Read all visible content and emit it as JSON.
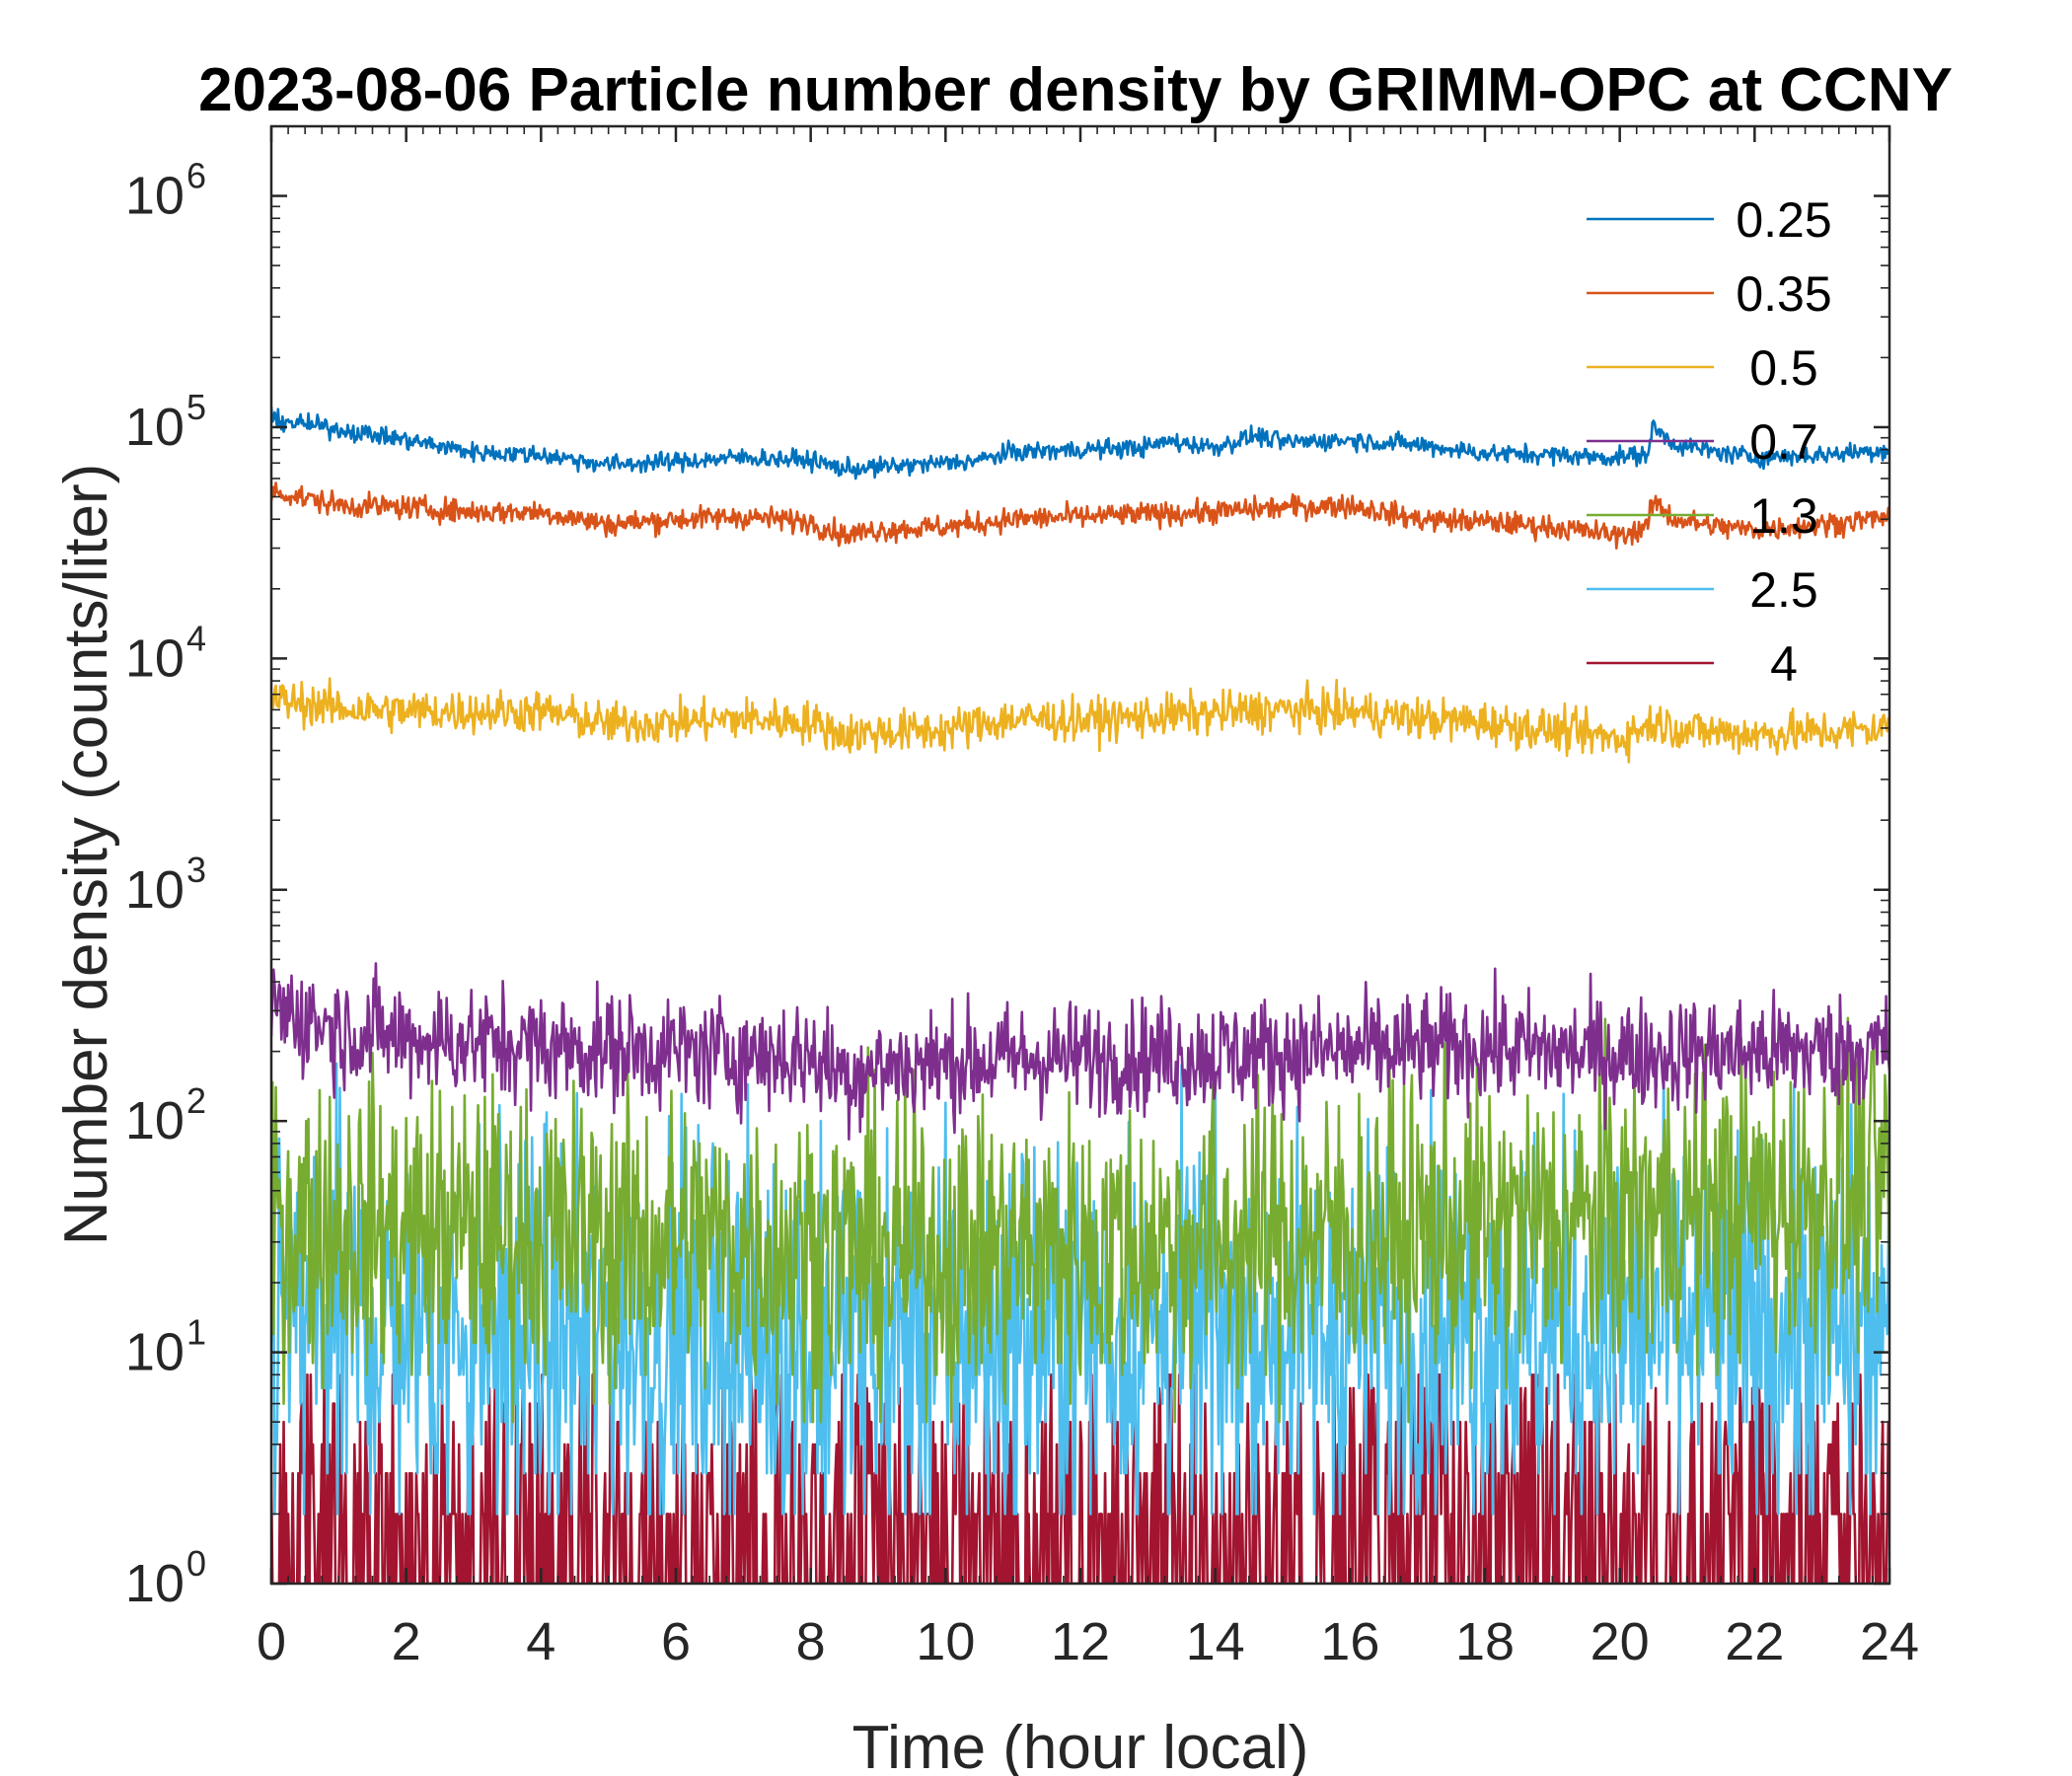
{
  "chart_data": {
    "type": "line",
    "title": "2023-08-06 Particle number density by GRIMM-OPC at CCNY",
    "xlabel": "Time (hour local)",
    "ylabel": "Number density (counts/liter)",
    "xlim": [
      0,
      24
    ],
    "ylim": [
      1,
      2000000
    ],
    "yscale": "log",
    "x_ticks": [
      "0",
      "2",
      "4",
      "6",
      "8",
      "10",
      "12",
      "14",
      "16",
      "18",
      "20",
      "22",
      "24"
    ],
    "y_ticks": [
      {
        "base": "10",
        "exp": "0",
        "value": 1
      },
      {
        "base": "10",
        "exp": "1",
        "value": 10
      },
      {
        "base": "10",
        "exp": "2",
        "value": 100
      },
      {
        "base": "10",
        "exp": "3",
        "value": 1000
      },
      {
        "base": "10",
        "exp": "4",
        "value": 10000
      },
      {
        "base": "10",
        "exp": "5",
        "value": 100000
      },
      {
        "base": "10",
        "exp": "6",
        "value": 1000000
      }
    ],
    "legend_position": "top-right",
    "series": [
      {
        "name": "0.25",
        "color": "#0072BD",
        "noise": 0.02,
        "x": [
          0,
          1,
          2,
          3,
          4,
          5,
          6,
          7,
          8,
          8.5,
          9,
          10,
          10.5,
          11,
          12,
          13,
          13.3,
          14,
          14.6,
          15,
          16,
          17,
          18,
          19,
          19.8,
          20.4,
          20.5,
          20.8,
          21.2,
          22,
          23,
          24
        ],
        "y": [
          108000,
          98000,
          88000,
          78000,
          76000,
          69000,
          71000,
          74000,
          72000,
          66000,
          67000,
          70000,
          72000,
          78000,
          80000,
          82000,
          87000,
          82000,
          92000,
          86000,
          88000,
          84000,
          77000,
          76000,
          74000,
          76000,
          100000,
          85000,
          80000,
          74000,
          76000,
          80000
        ]
      },
      {
        "name": "0.35",
        "color": "#D95319",
        "noise": 0.025,
        "x": [
          0,
          1,
          2,
          3,
          4,
          5,
          6,
          7,
          8,
          8.5,
          9,
          10,
          11,
          12,
          13,
          14,
          15,
          16,
          17,
          18,
          19,
          20,
          20.4,
          20.5,
          20.8,
          21.5,
          22,
          23,
          24
        ],
        "y": [
          53000,
          46000,
          45000,
          43000,
          43000,
          38000,
          40000,
          41000,
          39000,
          34000,
          36000,
          37000,
          40000,
          41000,
          42000,
          43000,
          45000,
          46000,
          40000,
          39000,
          37000,
          34000,
          37000,
          48000,
          40000,
          37000,
          36000,
          38000,
          41000
        ]
      },
      {
        "name": "0.5",
        "color": "#EDB120",
        "noise": 0.045,
        "x": [
          0,
          1,
          2,
          3,
          4,
          5,
          6,
          7,
          8,
          8.5,
          9,
          10,
          11,
          12,
          13,
          14,
          15,
          16,
          17,
          18,
          19,
          20,
          20.5,
          21,
          22,
          23,
          24
        ],
        "y": [
          6700,
          6100,
          5900,
          5900,
          5900,
          5200,
          5300,
          5500,
          5300,
          4700,
          4800,
          4900,
          5500,
          5400,
          5600,
          5800,
          6000,
          5900,
          5500,
          5300,
          4900,
          4500,
          5300,
          4900,
          4700,
          4800,
          5000
        ]
      },
      {
        "name": "0.7",
        "color": "#7E2F8E",
        "noise": 0.12,
        "x": [
          0,
          1,
          2,
          4,
          6,
          8,
          8.5,
          9,
          10,
          12,
          14,
          16,
          18,
          19,
          20,
          22,
          24
        ],
        "y": [
          310,
          250,
          230,
          210,
          200,
          190,
          160,
          170,
          180,
          190,
          195,
          200,
          210,
          200,
          195,
          200,
          205
        ]
      },
      {
        "name": "1.3",
        "color": "#77AC30",
        "noise": 0.32,
        "x": [
          0,
          2,
          4,
          6,
          8,
          10,
          12,
          14,
          16,
          18,
          20,
          22,
          24
        ],
        "y": [
          38,
          34,
          32,
          30,
          28,
          27,
          28,
          30,
          32,
          34,
          38,
          44,
          50
        ]
      },
      {
        "name": "2.5",
        "color": "#4DBEEE",
        "noise": 0.42,
        "x": [
          0,
          4,
          8,
          12,
          16,
          20,
          24
        ],
        "y": [
          13,
          12,
          11,
          12,
          13,
          13,
          12
        ]
      },
      {
        "name": "4",
        "color": "#A2142F",
        "noise": 0.0,
        "x": [
          0,
          24
        ],
        "y": [
          2,
          2
        ]
      }
    ]
  }
}
